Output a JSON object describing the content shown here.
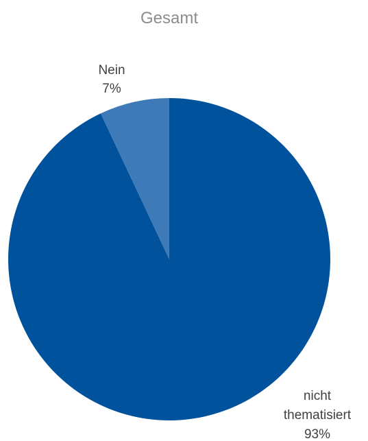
{
  "chart_data": {
    "type": "pie",
    "title": "Gesamt",
    "slices": [
      {
        "label": "nicht thematisiert",
        "label_lines": [
          "nicht",
          "thematisiert"
        ],
        "value": 93,
        "value_label": "93%",
        "color": "#00529c"
      },
      {
        "label": "Nein",
        "label_lines": [
          "Nein"
        ],
        "value": 7,
        "value_label": "7%",
        "color": "#3e7ab8"
      }
    ],
    "start": "12 o'clock",
    "direction": "clockwise",
    "legend": "none"
  }
}
